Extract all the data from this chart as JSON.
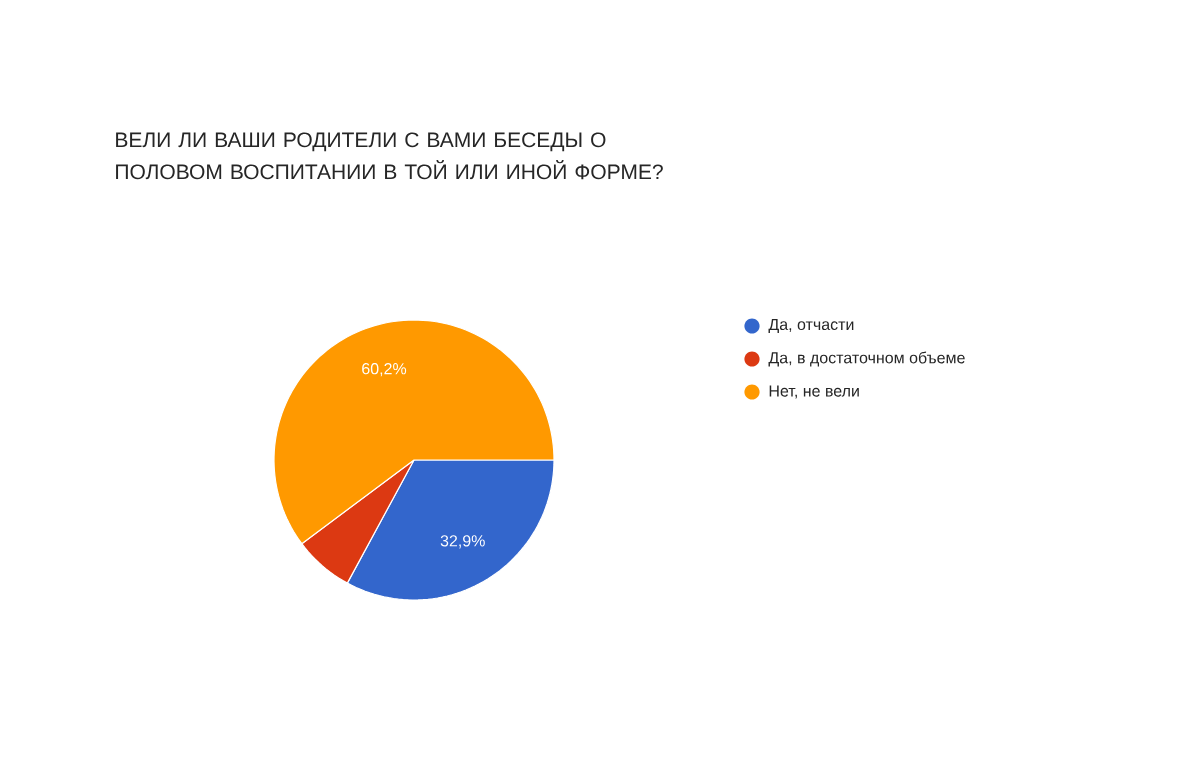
{
  "chart_data": {
    "type": "pie",
    "title": "ВЕЛИ ЛИ ВАШИ РОДИТЕЛИ С ВАМИ БЕСЕДЫ О ПОЛОВОМ ВОСПИТАНИИ В ТОЙ ИЛИ ИНОЙ ФОРМЕ?",
    "categories": [
      "Да, отчасти",
      "Да, в достаточном объеме",
      "Нет, не вели"
    ],
    "values": [
      32.9,
      6.9,
      60.2
    ],
    "colors": [
      "#3366cc",
      "#dc3912",
      "#ff9900"
    ],
    "value_labels": [
      "32,9%",
      null,
      "60,2%"
    ],
    "legend": "right"
  }
}
